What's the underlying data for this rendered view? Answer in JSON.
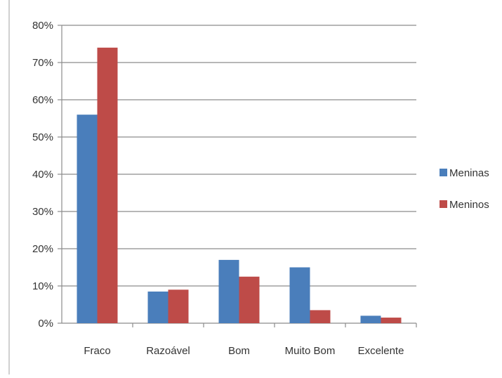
{
  "chart_data": {
    "type": "bar",
    "categories": [
      "Fraco",
      "Razoável",
      "Bom",
      "Muito Bom",
      "Excelente"
    ],
    "series": [
      {
        "name": "Meninas",
        "color": "#4a7ebb",
        "values": [
          56,
          8.5,
          17,
          15,
          2
        ]
      },
      {
        "name": "Meninos",
        "color": "#be4b48",
        "values": [
          74,
          9,
          12.5,
          3.5,
          1.5
        ]
      }
    ],
    "ylim": [
      0,
      80
    ],
    "yticks": [
      0,
      10,
      20,
      30,
      40,
      50,
      60,
      70,
      80
    ],
    "ytick_labels": [
      "0%",
      "10%",
      "20%",
      "30%",
      "40%",
      "50%",
      "60%",
      "70%",
      "80%"
    ],
    "title": "",
    "xlabel": "",
    "ylabel": "",
    "grid": true,
    "legend_position": "right"
  }
}
